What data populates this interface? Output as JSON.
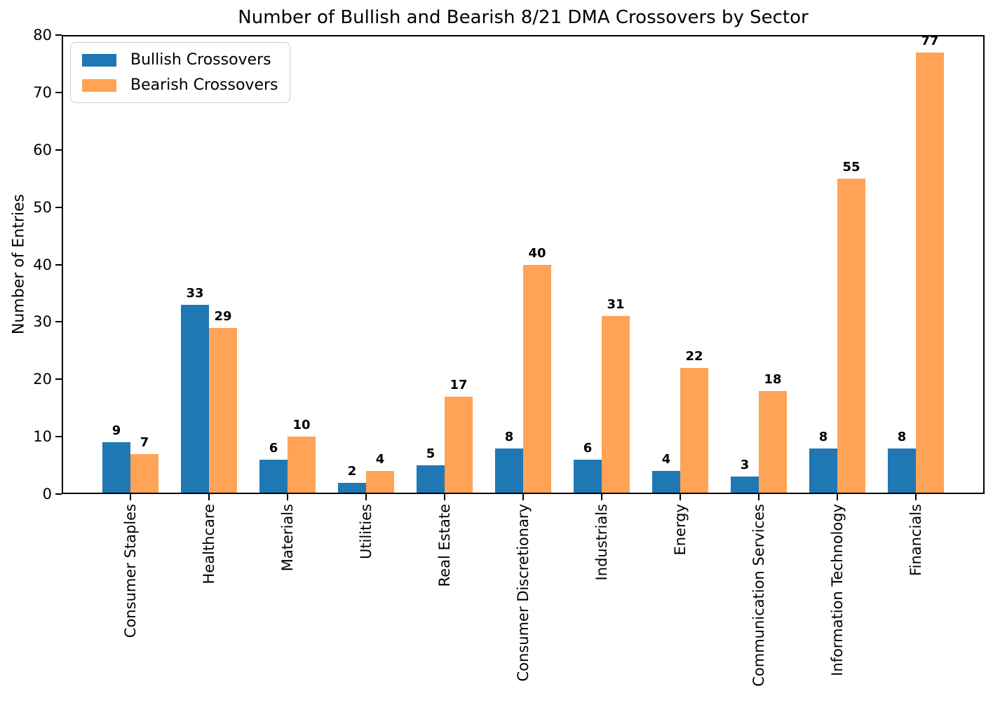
{
  "chart_data": {
    "type": "bar",
    "title": "Number of Bullish and Bearish 8/21 DMA Crossovers by Sector",
    "xlabel": "",
    "ylabel": "Number of Entries",
    "categories": [
      "Consumer Staples",
      "Healthcare",
      "Materials",
      "Utilities",
      "Real Estate",
      "Consumer Discretionary",
      "Industrials",
      "Energy",
      "Communication Services",
      "Information Technology",
      "Financials"
    ],
    "series": [
      {
        "name": "Bullish Crossovers",
        "color": "#1f77b4",
        "values": [
          9,
          33,
          6,
          2,
          5,
          8,
          6,
          4,
          3,
          8,
          8
        ]
      },
      {
        "name": "Bearish Crossovers",
        "color": "#ffa356",
        "values": [
          7,
          29,
          10,
          4,
          17,
          40,
          31,
          22,
          18,
          55,
          77
        ]
      }
    ],
    "ylim": [
      0,
      80
    ],
    "yticks": [
      0,
      10,
      20,
      30,
      40,
      50,
      60,
      70,
      80
    ],
    "bar_value_labels": true,
    "legend_position": "upper left",
    "grid": false
  }
}
